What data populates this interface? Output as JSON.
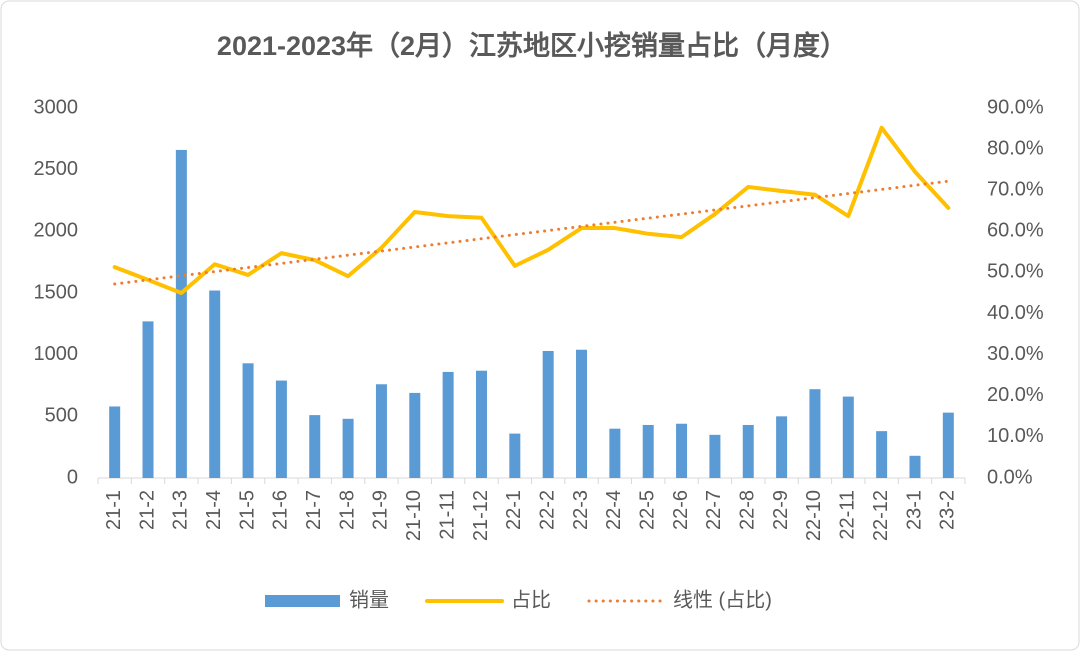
{
  "chart_data": {
    "type": "combo",
    "title": "2021-2023年（2月）江苏地区小挖销量占比（月度）",
    "categories": [
      "21-1",
      "21-2",
      "21-3",
      "21-4",
      "21-5",
      "21-6",
      "21-7",
      "21-8",
      "21-9",
      "21-10",
      "21-11",
      "21-12",
      "22-1",
      "22-2",
      "22-3",
      "22-4",
      "22-5",
      "22-6",
      "22-7",
      "22-8",
      "22-9",
      "22-10",
      "22-11",
      "22-12",
      "23-1",
      "23-2"
    ],
    "series": [
      {
        "name": "销量",
        "type": "bar",
        "axis": "y",
        "color": "#5b9bd5",
        "values": [
          580,
          1270,
          2660,
          1520,
          930,
          790,
          510,
          480,
          760,
          690,
          860,
          870,
          360,
          1030,
          1040,
          400,
          430,
          440,
          350,
          430,
          500,
          720,
          660,
          380,
          180,
          530
        ]
      },
      {
        "name": "占比",
        "type": "line",
        "axis": "y2",
        "color": "#ffc000",
        "line_style": "solid",
        "values": [
          51.3,
          48.2,
          45,
          52,
          49.4,
          54.7,
          53,
          49.1,
          56,
          64.7,
          63.7,
          63.3,
          51.6,
          55.5,
          60.8,
          60.8,
          59.4,
          58.6,
          64.2,
          70.8,
          69.8,
          68.9,
          63.7,
          85.2,
          74.5,
          65.7
        ]
      },
      {
        "name": "线性 (占比)",
        "type": "line",
        "axis": "y2",
        "color": "#ed7d31",
        "line_style": "dotted",
        "values": [
          47.2,
          48.2,
          49.2,
          50.2,
          51.2,
          52.2,
          53.2,
          54.2,
          55.2,
          56.2,
          57.2,
          58.2,
          59.2,
          60.2,
          61.2,
          62.2,
          63.2,
          64.2,
          65.2,
          66.2,
          67.2,
          68.2,
          69.2,
          70.2,
          71.2,
          72.2
        ]
      }
    ],
    "ylim": [
      0,
      3000
    ],
    "yticks": [
      0,
      500,
      1000,
      1500,
      2000,
      2500,
      3000
    ],
    "y2lim": [
      0,
      90
    ],
    "y2ticks": [
      {
        "value": 0,
        "label": "0.0%"
      },
      {
        "value": 10,
        "label": "10.0%"
      },
      {
        "value": 20,
        "label": "20.0%"
      },
      {
        "value": 30,
        "label": "30.0%"
      },
      {
        "value": 40,
        "label": "40.0%"
      },
      {
        "value": 50,
        "label": "50.0%"
      },
      {
        "value": 60,
        "label": "60.0%"
      },
      {
        "value": 70,
        "label": "70.0%"
      },
      {
        "value": 80,
        "label": "80.0%"
      },
      {
        "value": 90,
        "label": "90.0%"
      }
    ],
    "legend": "bottom"
  }
}
